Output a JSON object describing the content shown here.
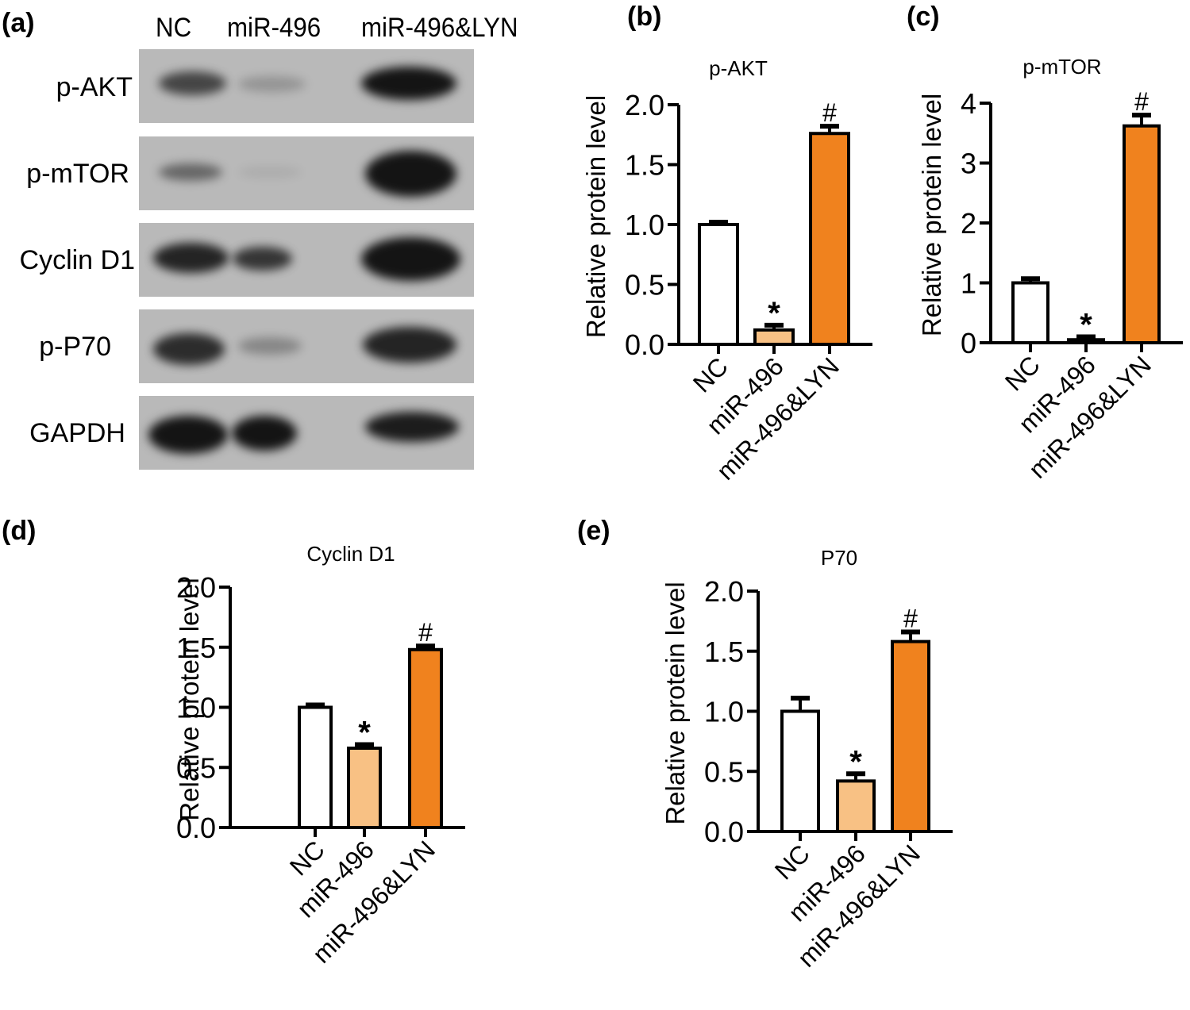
{
  "figure": {
    "panel_a": {
      "label": "(a)",
      "lanes": [
        "NC",
        "miR-496",
        "miR-496&LYN"
      ],
      "proteins": [
        "p-AKT",
        "p-mTOR",
        "Cyclin D1",
        "p-P70",
        "GAPDH"
      ],
      "band_intensity": {
        "p-AKT": [
          0.7,
          0.25,
          1.0
        ],
        "p-mTOR": [
          0.5,
          0.08,
          1.0
        ],
        "Cyclin D1": [
          0.9,
          0.8,
          1.0
        ],
        "p-P70": [
          0.85,
          0.35,
          0.9
        ],
        "GAPDH": [
          1.0,
          1.0,
          0.95
        ]
      }
    },
    "colors": {
      "nc": "#ffffff",
      "mir496": "#f8c184",
      "mir496_lyn": "#f0821e",
      "outline": "#000000",
      "blot_bg": "#b9b9b9"
    }
  },
  "chart_data": [
    {
      "panel": "(b)",
      "type": "bar",
      "title": "p-AKT",
      "xlabel": "",
      "ylabel": "Relative protein level",
      "categories": [
        "NC",
        "miR-496",
        "miR-496&LYN"
      ],
      "values": [
        1.0,
        0.12,
        1.76
      ],
      "errors": [
        0.02,
        0.04,
        0.06
      ],
      "annotations": [
        "",
        "*",
        "#"
      ],
      "ylim": [
        0,
        2.0
      ],
      "yticks": [
        "0.0",
        "0.5",
        "1.0",
        "1.5",
        "2.0"
      ],
      "grid": false
    },
    {
      "panel": "(c)",
      "type": "bar",
      "title": "p-mTOR",
      "xlabel": "",
      "ylabel": "Relative protein level",
      "categories": [
        "NC",
        "miR-496",
        "miR-496&LYN"
      ],
      "values": [
        1.0,
        0.05,
        3.62
      ],
      "errors": [
        0.07,
        0.05,
        0.18
      ],
      "annotations": [
        "",
        "*",
        "#"
      ],
      "ylim": [
        0,
        4
      ],
      "yticks": [
        "0",
        "1",
        "2",
        "3",
        "4"
      ],
      "grid": false
    },
    {
      "panel": "(d)",
      "type": "bar",
      "title": "Cyclin D1",
      "xlabel": "",
      "ylabel": "Relative protein level",
      "categories": [
        "NC",
        "miR-496",
        "miR-496&LYN"
      ],
      "values": [
        1.0,
        0.66,
        1.48
      ],
      "errors": [
        0.02,
        0.03,
        0.03
      ],
      "annotations": [
        "",
        "*",
        "#"
      ],
      "ylim": [
        0,
        2.0
      ],
      "yticks": [
        "0.0",
        "0.5",
        "1.0",
        "1.5",
        "2.0"
      ],
      "grid": false
    },
    {
      "panel": "(e)",
      "type": "bar",
      "title": "P70",
      "xlabel": "",
      "ylabel": "Relative protein level",
      "categories": [
        "NC",
        "miR-496",
        "miR-496&LYN"
      ],
      "values": [
        1.0,
        0.42,
        1.58
      ],
      "errors": [
        0.11,
        0.06,
        0.08
      ],
      "annotations": [
        "",
        "*",
        "#"
      ],
      "ylim": [
        0,
        2.0
      ],
      "yticks": [
        "0.0",
        "0.5",
        "1.0",
        "1.5",
        "2.0"
      ],
      "grid": false
    }
  ]
}
